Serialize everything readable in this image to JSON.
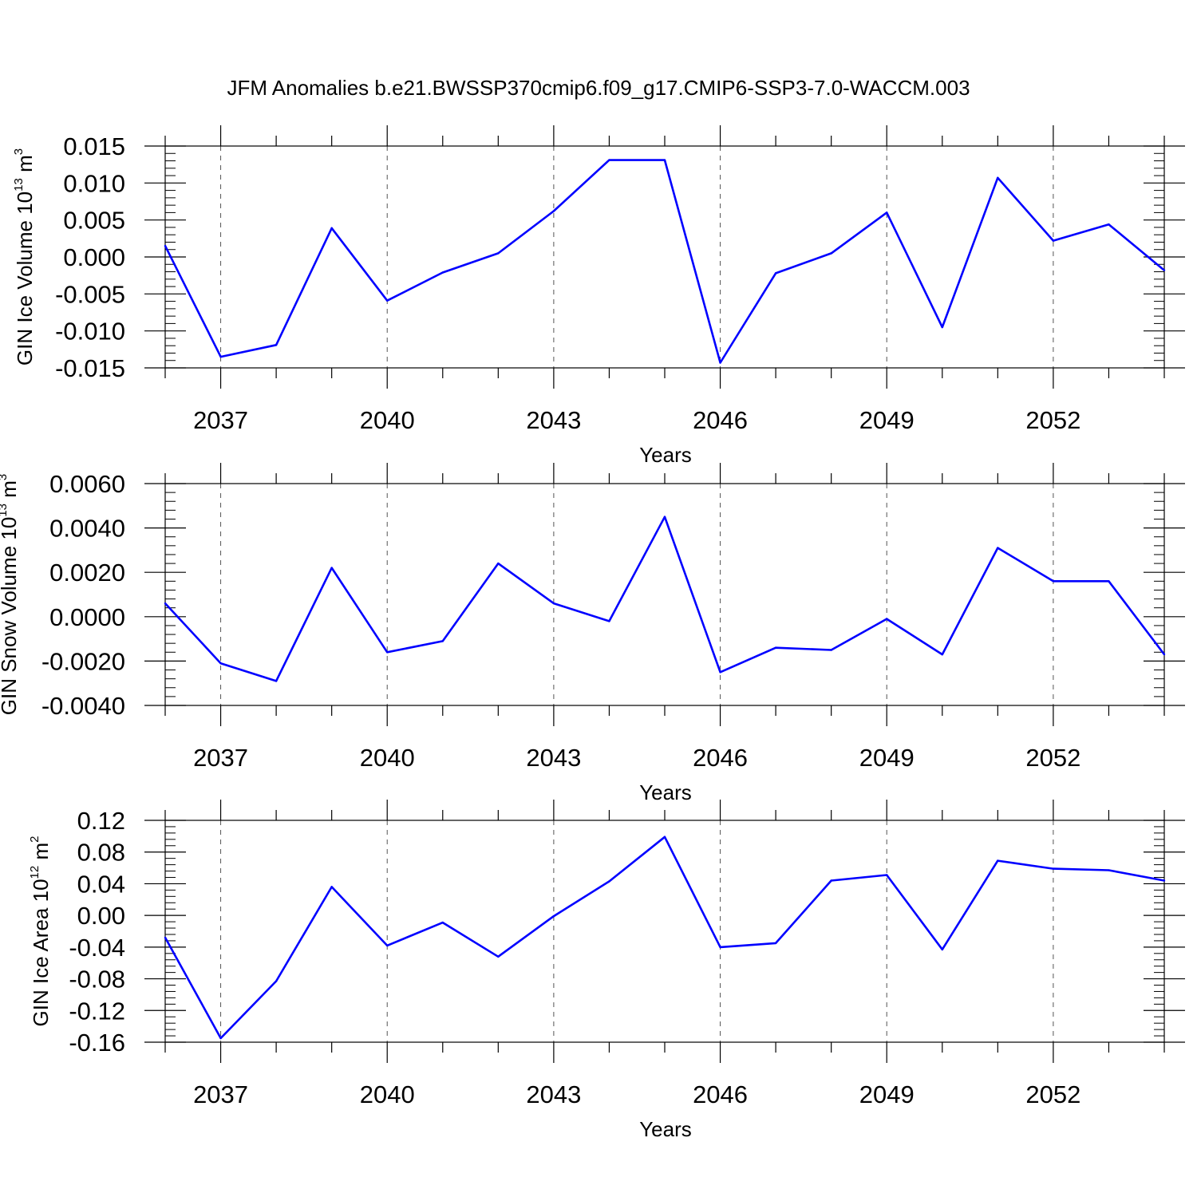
{
  "title": "JFM Anomalies b.e21.BWSSP370cmip6.f09_g17.CMIP6-SSP3-7.0-WACCM.003",
  "colors": {
    "line": "#0000ff",
    "axis": "#000000",
    "grid": "#555555"
  },
  "chart_data": [
    {
      "type": "line",
      "ylabel": {
        "text": "GIN Ice Volume 10",
        "sup": "13",
        "unit": " m",
        "unit_sup": "3"
      },
      "xlabel": "Years",
      "xlim": [
        2036,
        2054
      ],
      "xticks": [
        "2037",
        "2040",
        "2043",
        "2046",
        "2049",
        "2052"
      ],
      "ylim": [
        -0.015,
        0.015
      ],
      "yticks": [
        "-0.015",
        "-0.010",
        "-0.005",
        "0.000",
        "0.005",
        "0.010",
        "0.015"
      ],
      "x": [
        2036,
        2037,
        2038,
        2039,
        2040,
        2041,
        2042,
        2043,
        2044,
        2045,
        2046,
        2047,
        2048,
        2049,
        2050,
        2051,
        2052,
        2053,
        2054
      ],
      "values": [
        0.0015,
        -0.0135,
        -0.0119,
        0.0039,
        -0.0059,
        -0.0021,
        0.0005,
        0.0062,
        0.0131,
        0.0131,
        -0.0143,
        -0.0022,
        0.0005,
        0.006,
        -0.0095,
        0.0107,
        0.0022,
        0.0044,
        -0.0018
      ],
      "grid": "vertical dashed at labeled years"
    },
    {
      "type": "line",
      "ylabel": {
        "text": "GIN Snow Volume 10",
        "sup": "13",
        "unit": " m",
        "unit_sup": "3"
      },
      "xlabel": "Years",
      "xlim": [
        2036,
        2054
      ],
      "xticks": [
        "2037",
        "2040",
        "2043",
        "2046",
        "2049",
        "2052"
      ],
      "ylim": [
        -0.004,
        0.006
      ],
      "yticks": [
        "-0.0040",
        "-0.0020",
        "0.0000",
        "0.0020",
        "0.0040",
        "0.0060"
      ],
      "x": [
        2036,
        2037,
        2038,
        2039,
        2040,
        2041,
        2042,
        2043,
        2044,
        2045,
        2046,
        2047,
        2048,
        2049,
        2050,
        2051,
        2052,
        2053,
        2054
      ],
      "values": [
        0.0006,
        -0.0021,
        -0.0029,
        0.0022,
        -0.0016,
        -0.0011,
        0.0024,
        0.0006,
        -0.0002,
        0.0045,
        -0.0025,
        -0.0014,
        -0.0015,
        -0.0001,
        -0.0017,
        0.0031,
        0.0016,
        0.0016,
        -0.0017
      ],
      "grid": "vertical dashed at labeled years"
    },
    {
      "type": "line",
      "ylabel": {
        "text": "GIN Ice Area 10",
        "sup": "12",
        "unit": " m",
        "unit_sup": "2"
      },
      "xlabel": "Years",
      "xlim": [
        2036,
        2054
      ],
      "xticks": [
        "2037",
        "2040",
        "2043",
        "2046",
        "2049",
        "2052"
      ],
      "ylim": [
        -0.16,
        0.12
      ],
      "yticks": [
        "-0.16",
        "-0.12",
        "-0.08",
        "-0.04",
        "0.00",
        "0.04",
        "0.08",
        "0.12"
      ],
      "x": [
        2036,
        2037,
        2038,
        2039,
        2040,
        2041,
        2042,
        2043,
        2044,
        2045,
        2046,
        2047,
        2048,
        2049,
        2050,
        2051,
        2052,
        2053,
        2054
      ],
      "values": [
        -0.028,
        -0.155,
        -0.083,
        0.036,
        -0.038,
        -0.009,
        -0.052,
        -0.001,
        0.043,
        0.099,
        -0.04,
        -0.035,
        0.044,
        0.051,
        -0.043,
        0.069,
        0.059,
        0.057,
        0.044
      ],
      "grid": "vertical dashed at labeled years"
    }
  ]
}
